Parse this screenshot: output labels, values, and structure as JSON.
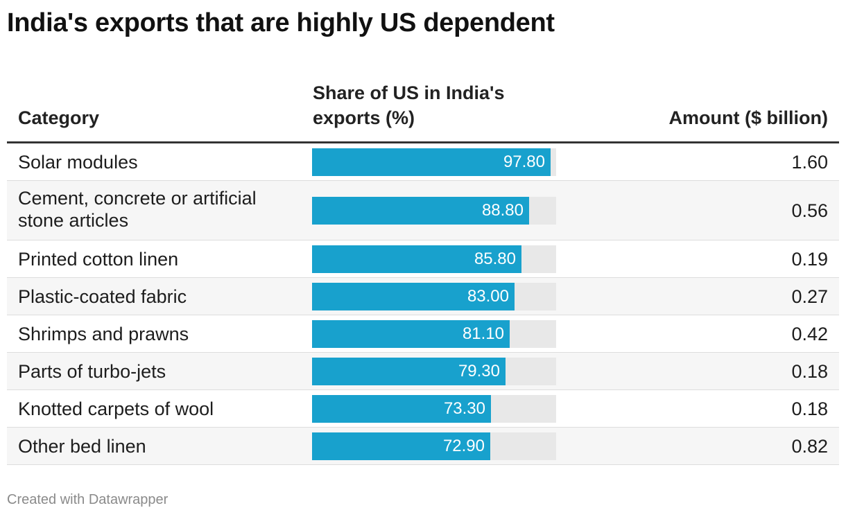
{
  "title": "India's exports that are highly US dependent",
  "footer": "Created with Datawrapper",
  "colors": {
    "bar": "#18a1cd",
    "bar_bg": "#e8e8e8",
    "row_alt": "#f6f6f6"
  },
  "chart_data": {
    "type": "table",
    "title": "India's exports that are highly US dependent",
    "columns": [
      "Category",
      "Share of US in India's exports (%)",
      "Amount ($ billion)"
    ],
    "bar_max": 100,
    "rows": [
      {
        "category": "Solar modules",
        "share": 97.8,
        "share_label": "97.80",
        "amount": "1.60"
      },
      {
        "category": "Cement, concrete or artificial stone articles",
        "share": 88.8,
        "share_label": "88.80",
        "amount": "0.56"
      },
      {
        "category": "Printed cotton linen",
        "share": 85.8,
        "share_label": "85.80",
        "amount": "0.19"
      },
      {
        "category": "Plastic-coated fabric",
        "share": 83.0,
        "share_label": "83.00",
        "amount": "0.27"
      },
      {
        "category": "Shrimps and prawns",
        "share": 81.1,
        "share_label": "81.10",
        "amount": "0.42"
      },
      {
        "category": "Parts of turbo-jets",
        "share": 79.3,
        "share_label": "79.30",
        "amount": "0.18"
      },
      {
        "category": "Knotted carpets of wool",
        "share": 73.3,
        "share_label": "73.30",
        "amount": "0.18"
      },
      {
        "category": "Other bed linen",
        "share": 72.9,
        "share_label": "72.90",
        "amount": "0.82"
      }
    ]
  }
}
